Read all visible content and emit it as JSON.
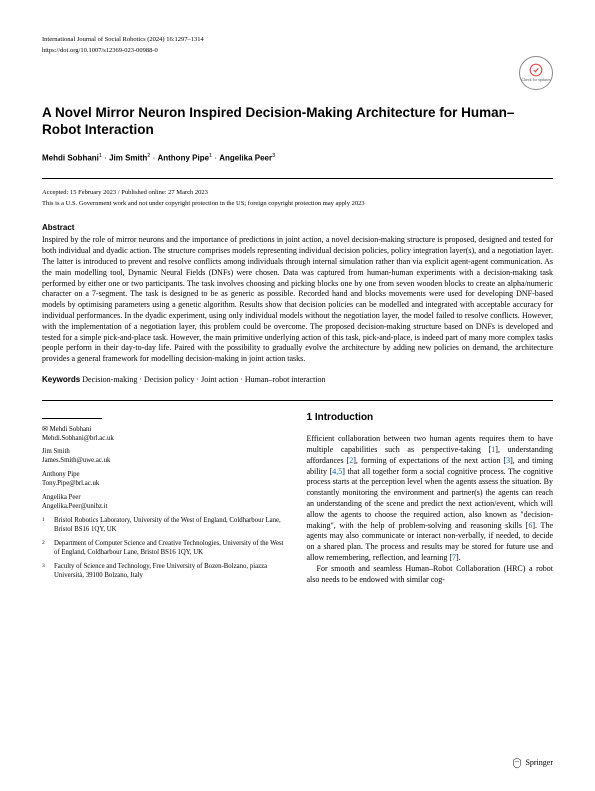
{
  "journal": "International Journal of Social Robotics (2024) 16:1297–1314",
  "doi": "https://doi.org/10.1007/s12369-023-00988-0",
  "check_updates_label": "Check for updates",
  "title": "A Novel Mirror Neuron Inspired Decision-Making Architecture for Human–Robot Interaction",
  "authors": [
    {
      "name": "Mehdi Sobhani",
      "sup": "1"
    },
    {
      "name": "Jim Smith",
      "sup": "2"
    },
    {
      "name": "Anthony Pipe",
      "sup": "1"
    },
    {
      "name": "Angelika Peer",
      "sup": "3"
    }
  ],
  "dates": "Accepted: 15 February 2023 / Published online: 27 March 2023",
  "copyright": "This is a U.S. Government work and not under copyright protection in the US; foreign copyright protection may apply 2023",
  "abstract_heading": "Abstract",
  "abstract_text": "Inspired by the role of mirror neurons and the importance of predictions in joint action, a novel decision-making structure is proposed, designed and tested for both individual and dyadic action. The structure comprises models representing individual decision policies, policy integration layer(s), and a negotiation layer. The latter is introduced to prevent and resolve conflicts among individuals through internal simulation rather than via explicit agent-agent communication. As the main modelling tool, Dynamic Neural Fields (DNFs) were chosen. Data was captured from human-human experiments with a decision-making task performed by either one or two participants. The task involves choosing and picking blocks one by one from seven wooden blocks to create an alpha/numeric character on a 7-segment. The task is designed to be as generic as possible. Recorded hand and blocks movements were used for developing DNF-based models by optimising parameters using a genetic algorithm. Results show that decision policies can be modelled and integrated with acceptable accuracy for individual performances. In the dyadic experiment, using only individual models without the negotiation layer, the model failed to resolve conflicts. However, with the implementation of a negotiation layer, this problem could be overcome. The proposed decision-making structure based on DNFs is developed and tested for a simple pick-and-place task. However, the main primitive underlying action of this task, pick-and-place, is indeed part of many more complex tasks people perform in their day-to-day life. Paired with the possibility to gradually evolve the architecture by adding new policies on demand, the architecture provides a general framework for modelling decision-making in joint action tasks.",
  "keywords_label": "Keywords",
  "keywords": "Decision-making · Decision policy · Joint action · Human–robot interaction",
  "contacts": [
    {
      "name": "Mehdi Sobhani",
      "email": "Mehdi.Sobhani@brl.ac.uk",
      "corresponding": true
    },
    {
      "name": "Jim Smith",
      "email": "James.Smith@uwe.ac.uk",
      "corresponding": false
    },
    {
      "name": "Anthony Pipe",
      "email": "Tony.Pipe@brl.ac.uk",
      "corresponding": false
    },
    {
      "name": "Angelika Peer",
      "email": "Angelika.Peer@unibz.it",
      "corresponding": false
    }
  ],
  "affiliations": [
    {
      "num": "1",
      "text": "Bristol Robotics Laboratory, University of the West of England, Coldharbour Lane, Bristol BS16 1QY, UK"
    },
    {
      "num": "2",
      "text": "Department of Computer Science and Creative Technologies, University of the West of England, Coldharbour Lane, Bristol BS16 1QY, UK"
    },
    {
      "num": "3",
      "text": "Faculty of Science and Technology, Free University of Bozen-Bolzano, piazza Università, 39100 Bolzano, Italy"
    }
  ],
  "section_heading": "1 Introduction",
  "intro_p1": "Efficient collaboration between two human agents requires them to have multiple capabilities such as perspective-taking [1], understanding affordances [2], forming of expectations of the next action [3], and timing ability [4,5] that all together form a social cognitive process. The cognitive process starts at the perception level when the agents assess the situation. By constantly monitoring the environment and partner(s) the agents can reach an understanding of the scene and predict the next action/event, which will allow the agents to choose the required action, also known as \"decision-making\", with the help of problem-solving and reasoning skills [6]. The agents may also communicate or interact non-verbally, if needed, to decide on a shared plan. The process and results may be stored for future use and allow remembering, reflection, and learning [7].",
  "intro_p2": "For smooth and seamless Human–Robot Collaboration (HRC) a robot also needs to be endowed with similar cog-",
  "publisher": "Springer",
  "colors": {
    "text": "#000000",
    "link": "#0066cc",
    "background": "#ffffff"
  },
  "typography": {
    "body_fontsize_pt": 8,
    "title_fontsize_pt": 13.5,
    "header_fontsize_pt": 6.5,
    "section_heading_fontsize_pt": 10
  }
}
